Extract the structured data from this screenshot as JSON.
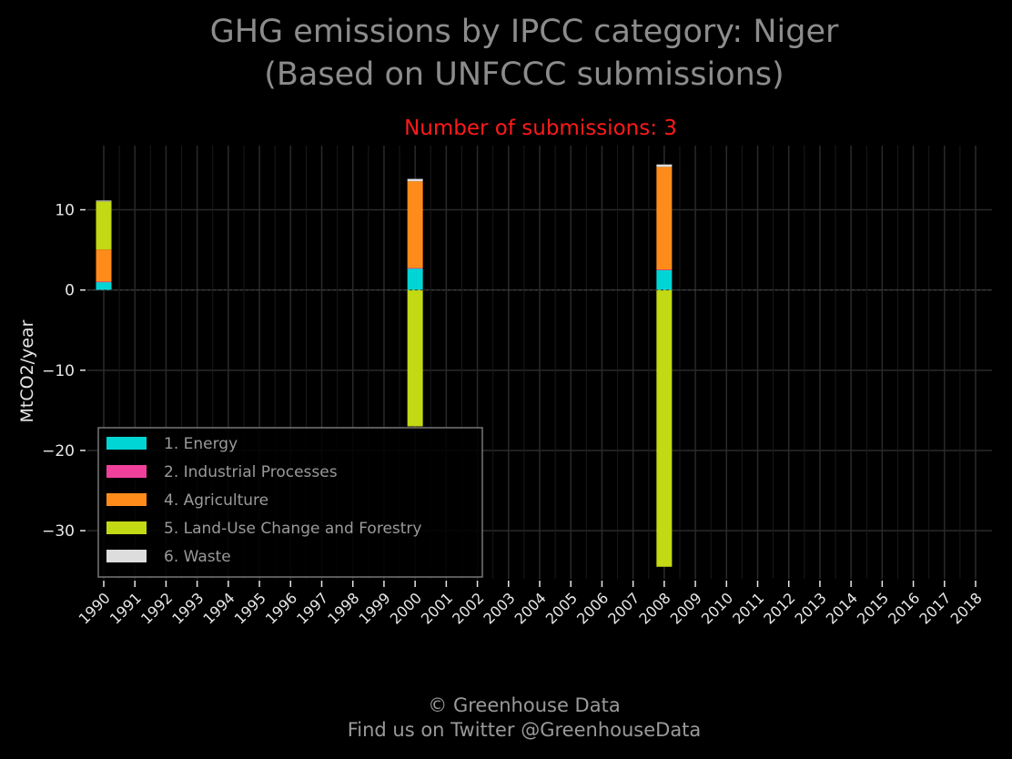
{
  "colors": {
    "background": "#000000",
    "title": "#8c8c8c",
    "subtitle": "#ff1a1a",
    "grid": "#2a2a2a",
    "axis_text": "#e6e6e6",
    "footer": "#9a9a9a",
    "legend_text": "#9a9a9a",
    "legend_border": "#777777"
  },
  "chart_data": {
    "type": "bar",
    "stacked": true,
    "title_line1": "GHG emissions by IPCC category: Niger",
    "title_line2": "(Based on UNFCCC submissions)",
    "subtitle": "Number of submissions: 3",
    "ylabel": "MtCO2/year",
    "xlabel": "",
    "ylim": [
      -36,
      18
    ],
    "yticks": [
      10,
      0,
      -10,
      -20,
      -30
    ],
    "ytick_labels": [
      "10",
      "0",
      "−10",
      "−20",
      "−30"
    ],
    "grid": true,
    "legend_position": "lower-left",
    "categories": [
      "1990",
      "1991",
      "1992",
      "1993",
      "1994",
      "1995",
      "1996",
      "1997",
      "1998",
      "1999",
      "2000",
      "2001",
      "2002",
      "2003",
      "2004",
      "2005",
      "2006",
      "2007",
      "2008",
      "2009",
      "2010",
      "2011",
      "2012",
      "2013",
      "2014",
      "2015",
      "2016",
      "2017",
      "2018"
    ],
    "series": [
      {
        "name": "1. Energy",
        "color": "#00d5d5",
        "values": [
          1.0,
          null,
          null,
          null,
          null,
          null,
          null,
          null,
          null,
          null,
          2.7,
          null,
          null,
          null,
          null,
          null,
          null,
          null,
          2.5,
          null,
          null,
          null,
          null,
          null,
          null,
          null,
          null,
          null,
          null
        ]
      },
      {
        "name": "2. Industrial Processes",
        "color": "#f0409c",
        "values": [
          0.05,
          null,
          null,
          null,
          null,
          null,
          null,
          null,
          null,
          null,
          0.05,
          null,
          null,
          null,
          null,
          null,
          null,
          null,
          0.05,
          null,
          null,
          null,
          null,
          null,
          null,
          null,
          null,
          null,
          null
        ]
      },
      {
        "name": "4. Agriculture",
        "color": "#ff8c1a",
        "values": [
          4.0,
          null,
          null,
          null,
          null,
          null,
          null,
          null,
          null,
          null,
          10.8,
          null,
          null,
          null,
          null,
          null,
          null,
          null,
          12.8,
          null,
          null,
          null,
          null,
          null,
          null,
          null,
          null,
          null,
          null
        ]
      },
      {
        "name": "5. Land-Use Change and Forestry",
        "color": "#c2d914",
        "values": [
          6.0,
          null,
          null,
          null,
          null,
          null,
          null,
          null,
          null,
          null,
          -17.0,
          null,
          null,
          null,
          null,
          null,
          null,
          null,
          -34.5,
          null,
          null,
          null,
          null,
          null,
          null,
          null,
          null,
          null,
          null
        ]
      },
      {
        "name": "6. Waste",
        "color": "#dddddd",
        "values": [
          0.1,
          null,
          null,
          null,
          null,
          null,
          null,
          null,
          null,
          null,
          0.3,
          null,
          null,
          null,
          null,
          null,
          null,
          null,
          0.3,
          null,
          null,
          null,
          null,
          null,
          null,
          null,
          null,
          null,
          null
        ]
      }
    ]
  },
  "footer": {
    "line1": "© Greenhouse Data",
    "line2": "Find us on Twitter @GreenhouseData"
  }
}
